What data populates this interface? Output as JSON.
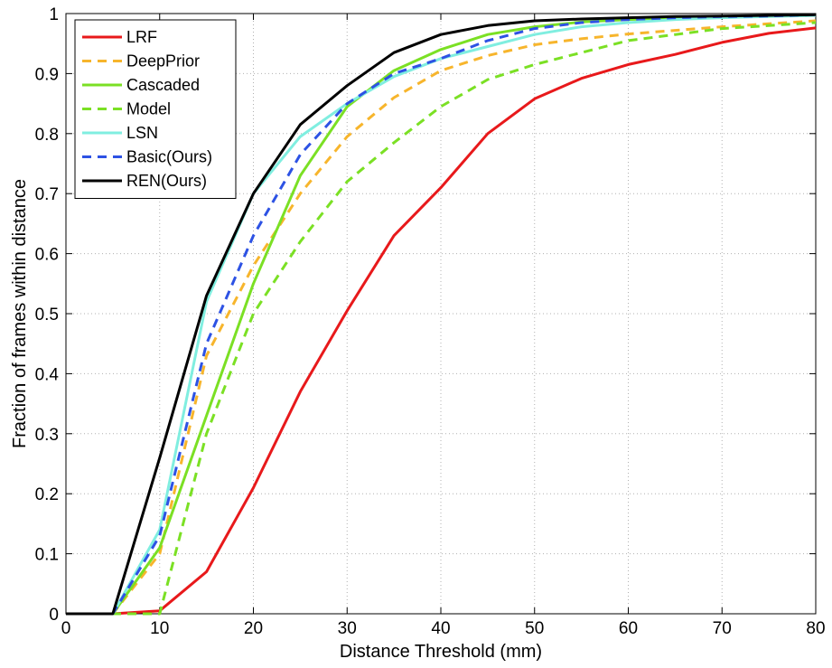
{
  "chart_data": {
    "type": "line",
    "title": "",
    "xlabel": "Distance Threshold (mm)",
    "ylabel": "Fraction of frames within distance",
    "xlim": [
      0,
      80
    ],
    "ylim": [
      0,
      1
    ],
    "xticks": [
      0,
      10,
      20,
      30,
      40,
      50,
      60,
      70,
      80
    ],
    "yticks": [
      0,
      0.1,
      0.2,
      0.3,
      0.4,
      0.5,
      0.6,
      0.7,
      0.8,
      0.9,
      1
    ],
    "grid": true,
    "legend_position": "top-left",
    "x": [
      0,
      5,
      10,
      15,
      20,
      25,
      30,
      35,
      40,
      45,
      50,
      55,
      60,
      65,
      70,
      75,
      80
    ],
    "series": [
      {
        "name": "LRF",
        "color": "#e8191b",
        "style": "solid",
        "values": [
          0,
          0,
          0.005,
          0.07,
          0.21,
          0.37,
          0.505,
          0.63,
          0.71,
          0.8,
          0.858,
          0.892,
          0.915,
          0.932,
          0.952,
          0.967,
          0.976
        ]
      },
      {
        "name": "DeepPrior",
        "color": "#f7b52c",
        "style": "dashed",
        "values": [
          0,
          0,
          0.1,
          0.43,
          0.58,
          0.7,
          0.795,
          0.86,
          0.905,
          0.93,
          0.948,
          0.958,
          0.966,
          0.972,
          0.978,
          0.983,
          0.988
        ]
      },
      {
        "name": "Cascaded",
        "color": "#7be024",
        "style": "solid",
        "values": [
          0,
          0,
          0.11,
          0.33,
          0.55,
          0.73,
          0.845,
          0.905,
          0.94,
          0.965,
          0.978,
          0.986,
          0.99,
          0.993,
          0.995,
          0.996,
          0.997
        ]
      },
      {
        "name": "Model",
        "color": "#7be024",
        "style": "dashed",
        "values": [
          0,
          0,
          0,
          0.3,
          0.5,
          0.62,
          0.72,
          0.785,
          0.845,
          0.89,
          0.915,
          0.935,
          0.955,
          0.965,
          0.975,
          0.98,
          0.985
        ]
      },
      {
        "name": "LSN",
        "color": "#80eee0",
        "style": "solid",
        "values": [
          0,
          0,
          0.14,
          0.52,
          0.7,
          0.795,
          0.85,
          0.895,
          0.925,
          0.945,
          0.965,
          0.978,
          0.985,
          0.99,
          0.993,
          0.995,
          0.997
        ]
      },
      {
        "name": "Basic(Ours)",
        "color": "#2d52e4",
        "style": "dashed",
        "values": [
          0,
          0,
          0.13,
          0.45,
          0.63,
          0.765,
          0.85,
          0.9,
          0.925,
          0.955,
          0.975,
          0.985,
          0.99,
          0.993,
          0.995,
          0.996,
          0.998
        ]
      },
      {
        "name": "REN(Ours)",
        "color": "#000000",
        "style": "solid",
        "values": [
          0,
          0,
          0.26,
          0.53,
          0.7,
          0.815,
          0.88,
          0.935,
          0.965,
          0.98,
          0.988,
          0.991,
          0.993,
          0.995,
          0.996,
          0.997,
          0.998
        ]
      }
    ]
  }
}
